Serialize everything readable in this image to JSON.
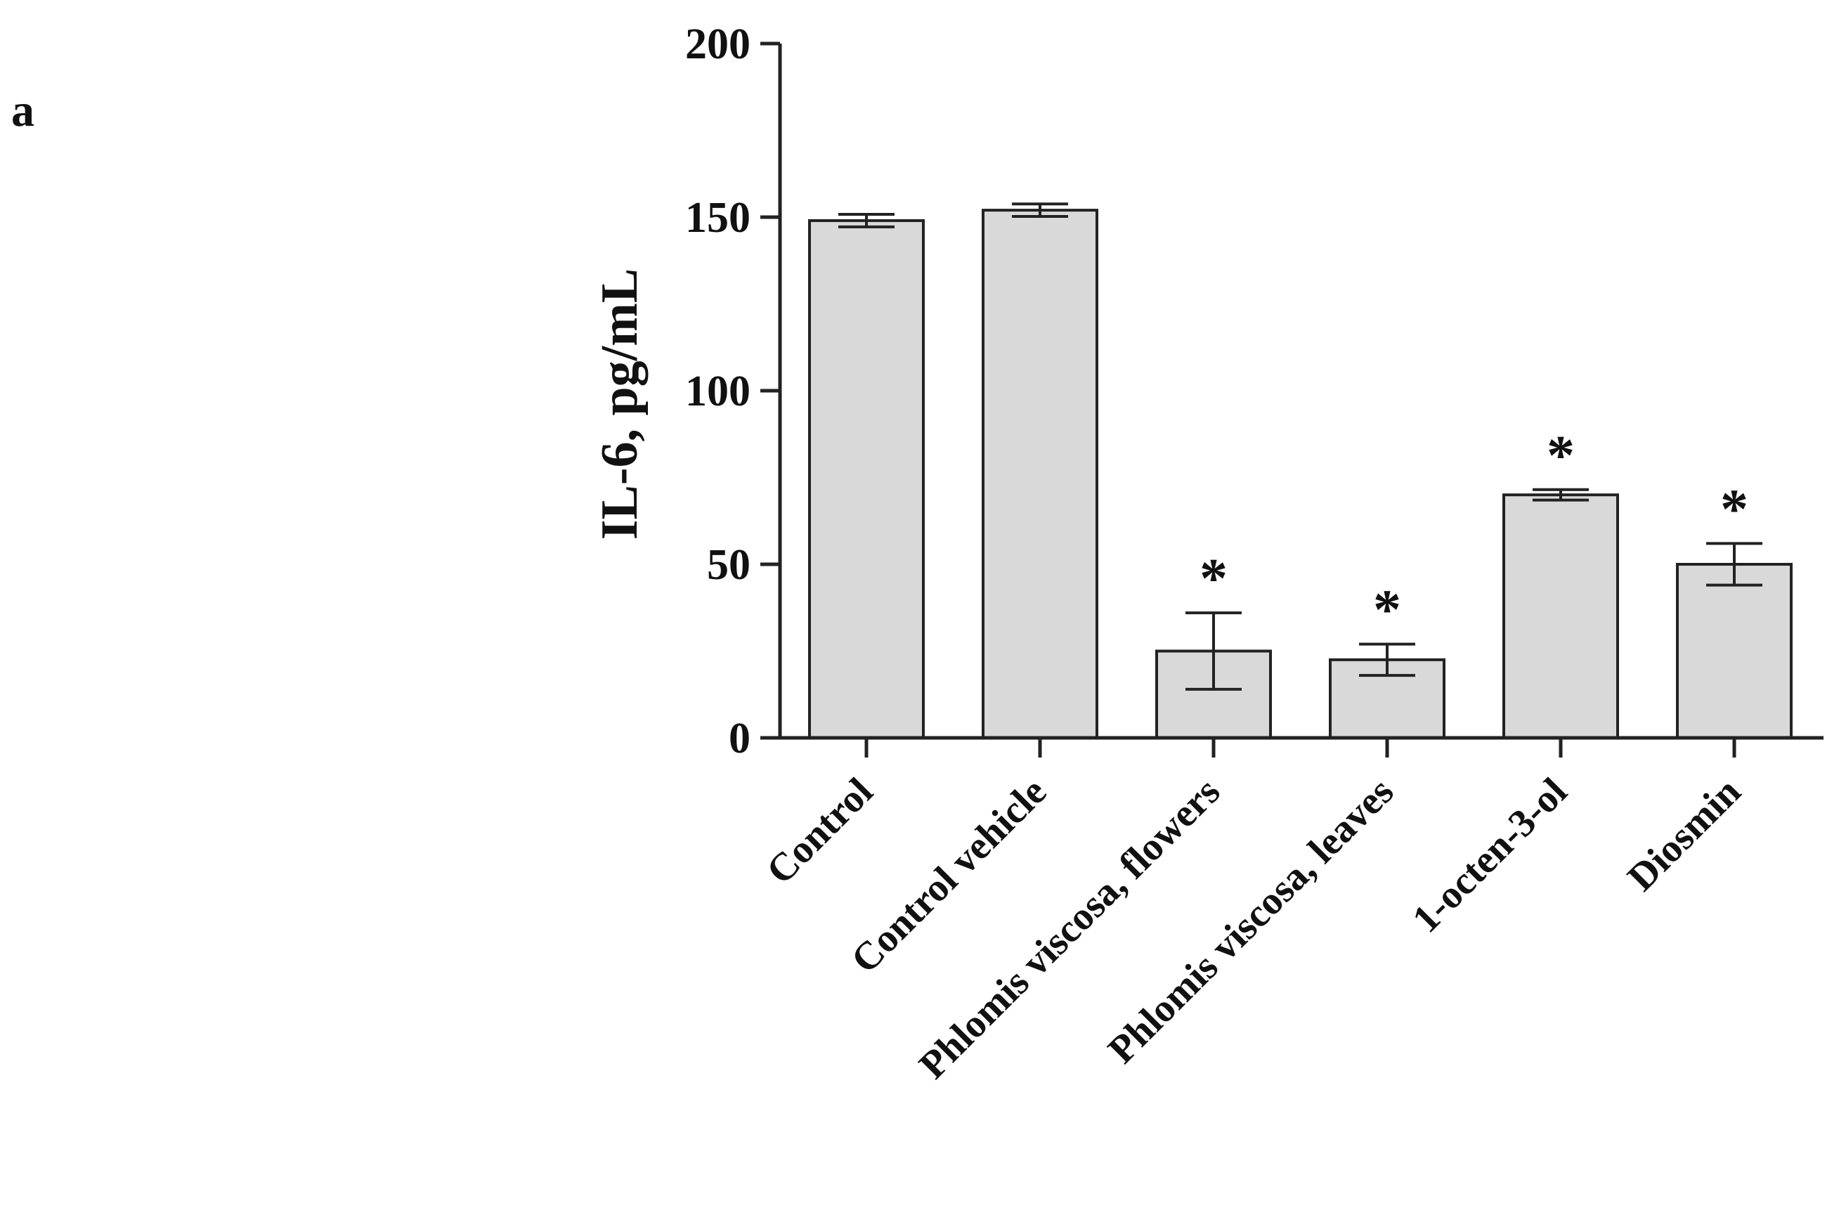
{
  "panel_label": "a",
  "chart_data": {
    "type": "bar",
    "title": "",
    "xlabel": "",
    "ylabel": "IL-6, pg/mL",
    "ylim": [
      0,
      200
    ],
    "yticks": [
      0,
      50,
      100,
      150,
      200
    ],
    "grid": false,
    "categories": [
      "Control",
      "Control vehicle",
      "Phlomis viscosa, flowers",
      "Phlomis viscosa, leaves",
      "1-octen-3-ol",
      "Diosmin"
    ],
    "values": [
      149,
      152,
      25,
      22.5,
      70,
      50
    ],
    "errors": [
      1.8,
      1.8,
      11,
      4.5,
      1.5,
      6
    ],
    "significance": [
      "",
      "",
      "*",
      "*",
      "*",
      "*"
    ],
    "colors": {
      "bar_fill": "#d9d9d9",
      "bar_stroke": "#222222",
      "axis": "#222222"
    }
  }
}
